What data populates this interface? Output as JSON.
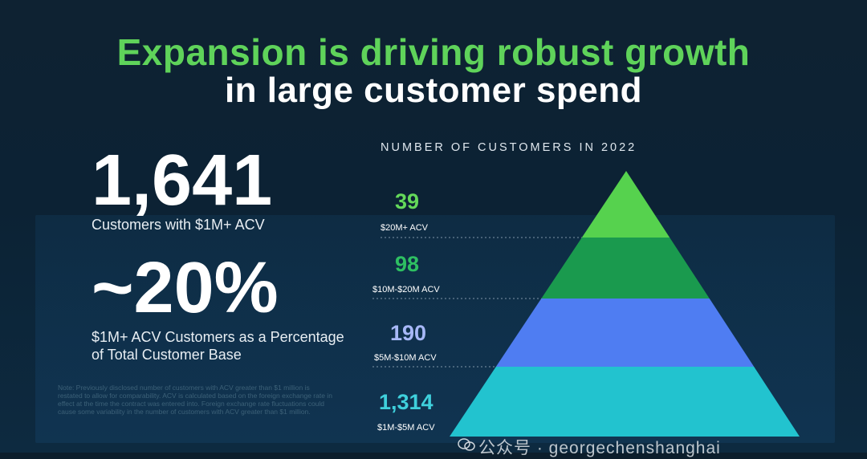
{
  "title": {
    "line1": "Expansion is driving robust growth",
    "line2": "in large customer spend"
  },
  "stats": {
    "customers_value": "1,641",
    "customers_label": "Customers with $1M+ ACV",
    "percent_value": "~20%",
    "percent_label": "$1M+ ACV Customers as a Percentage of Total Customer Base"
  },
  "note": "Note: Previously disclosed number of customers with ACV greater than $1 million is restated to allow for comparability. ACV is calculated based on the foreign exchange rate in effect at the time the contract was entered into. Foreign exchange rate fluctuations could cause some variability in the number of customers with ACV greater than $1 million.",
  "watermark": "公众号 · georgechenshanghai",
  "colors": {
    "accent_green": "#5fd35a",
    "tier_colors": [
      "#56d24e",
      "#1a9a4e",
      "#4f7df2",
      "#22c3cf"
    ],
    "value_colors": [
      "#64d95a",
      "#2ec062",
      "#a7b8f7",
      "#3fd0dc"
    ]
  },
  "chart_data": {
    "type": "pyramid",
    "title": "NUMBER OF CUSTOMERS IN 2022",
    "categories": [
      "$20M+ ACV",
      "$10M-$20M ACV",
      "$5M-$10M ACV",
      "$1M-$5M ACV"
    ],
    "values": [
      39,
      98,
      190,
      1314
    ],
    "value_labels": [
      "39",
      "98",
      "190",
      "1,314"
    ]
  }
}
